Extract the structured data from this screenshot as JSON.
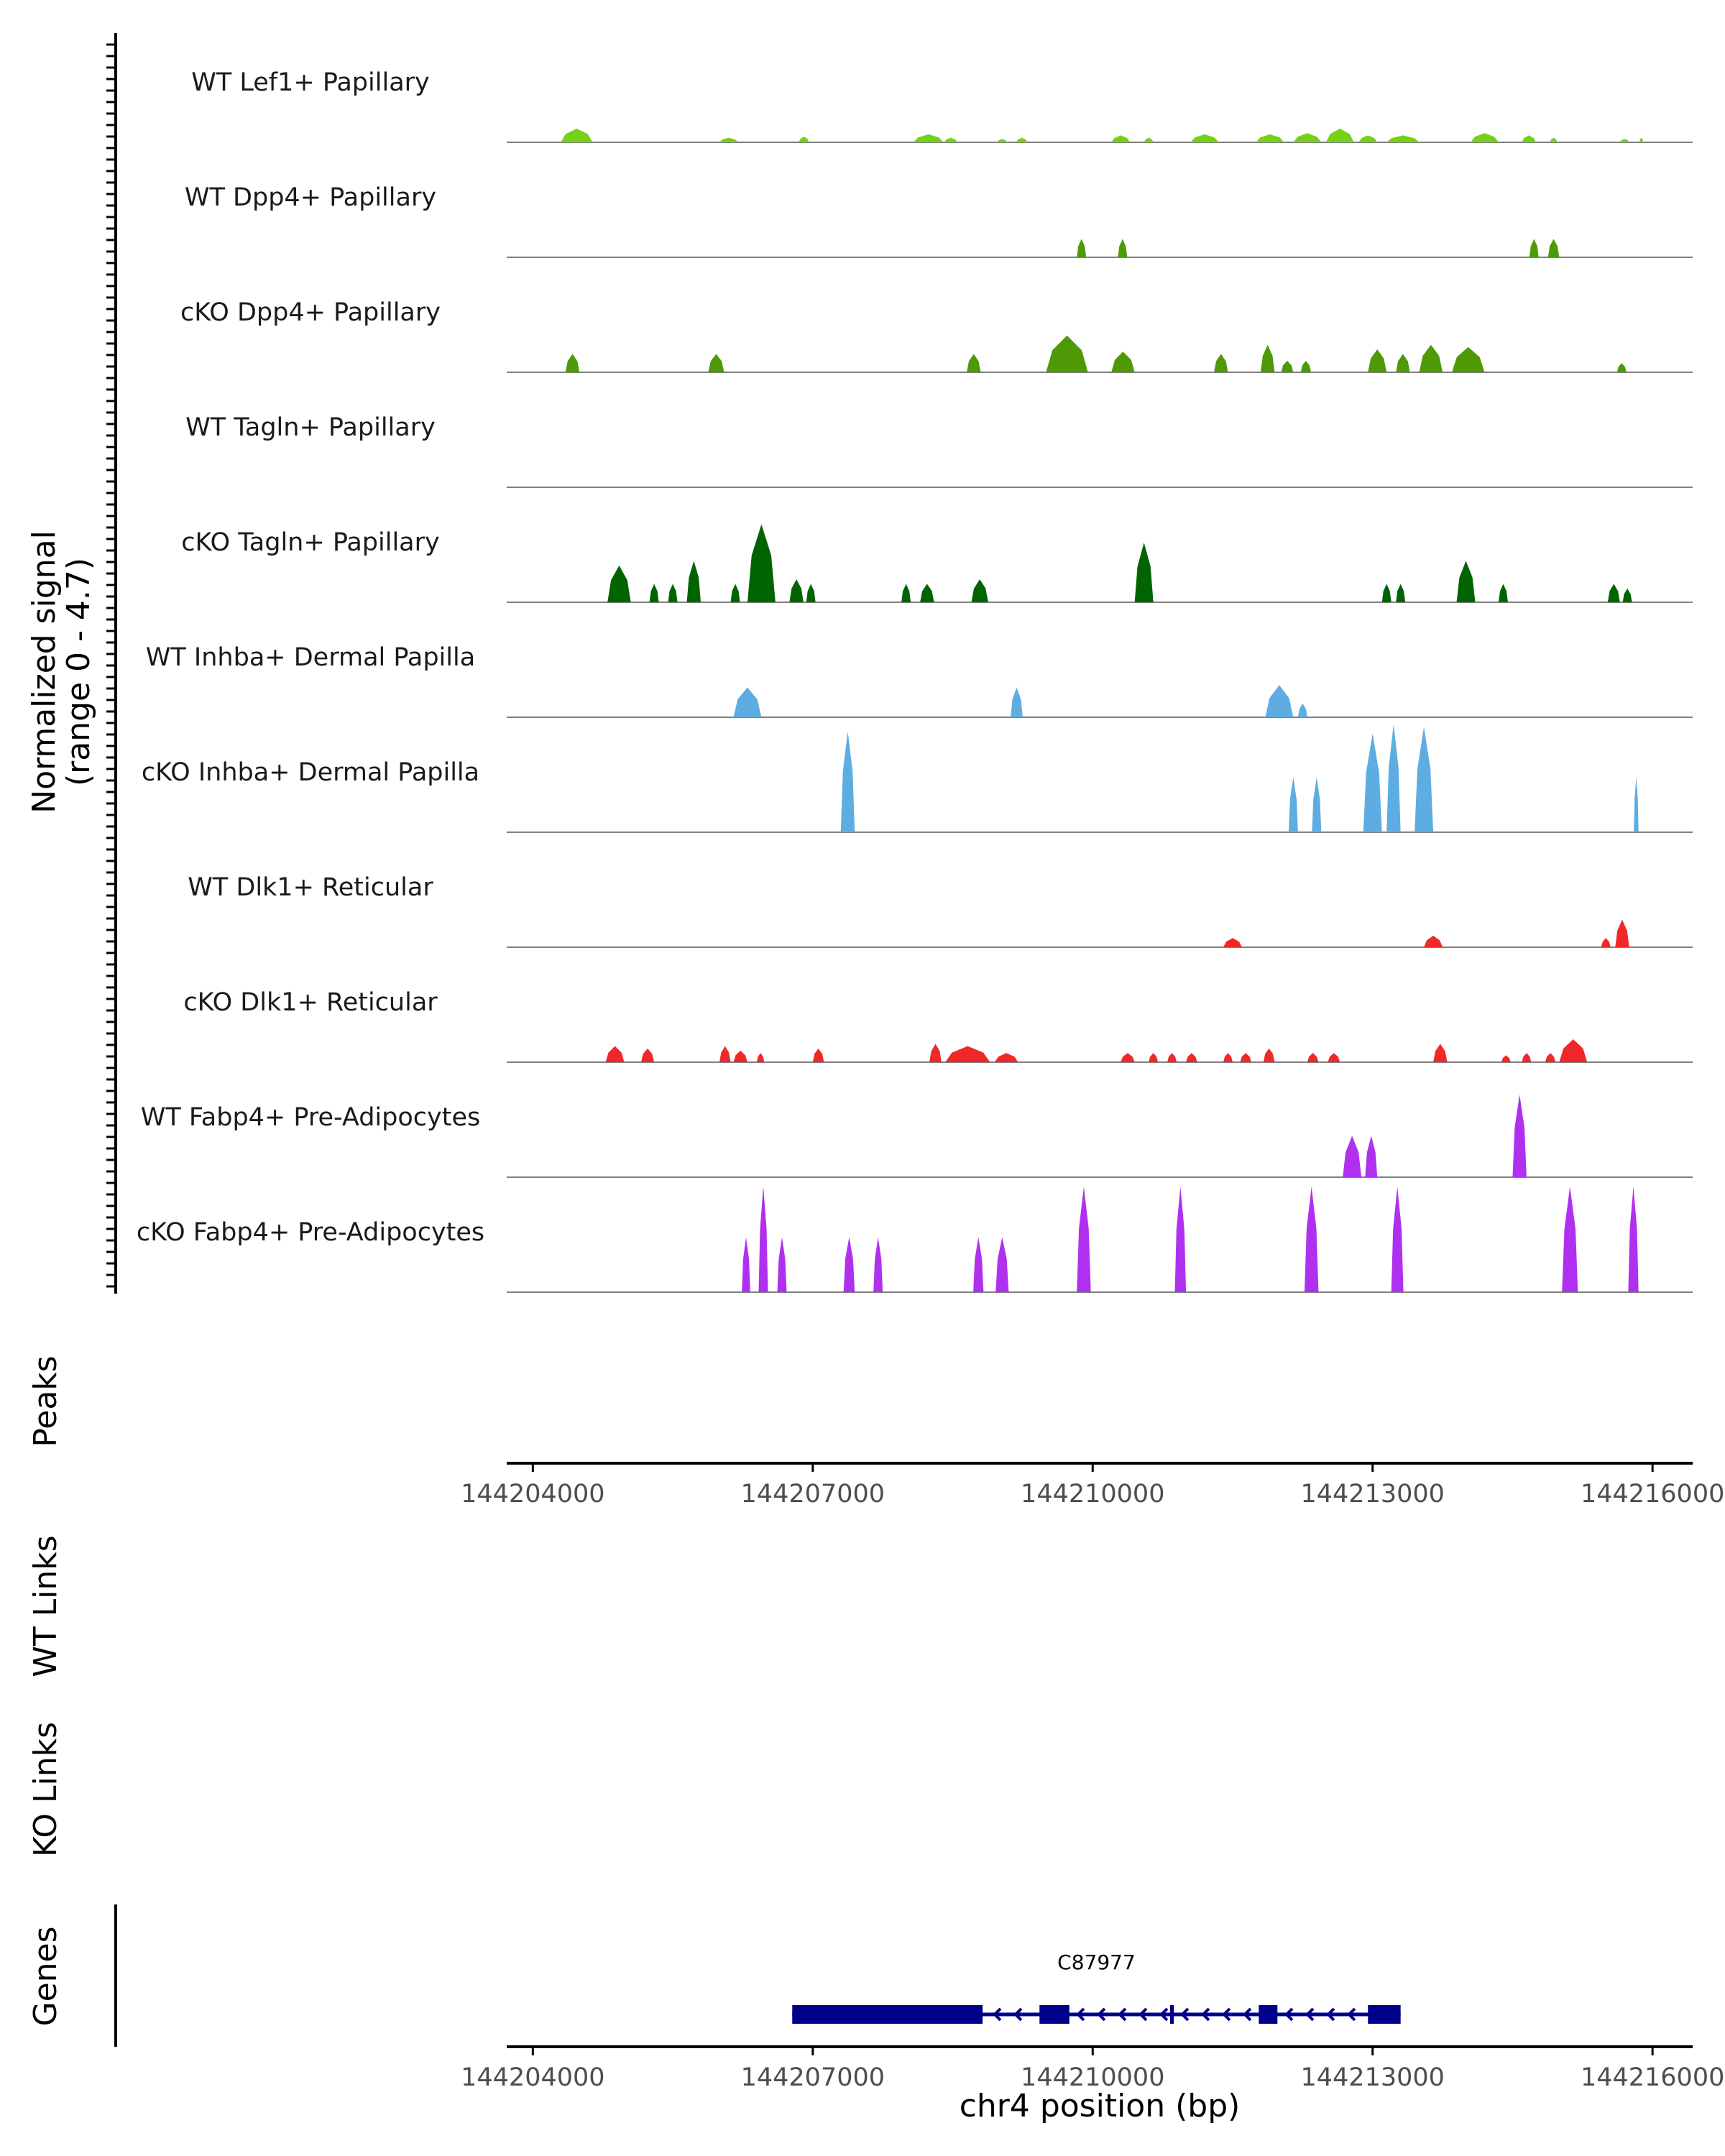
{
  "chart_data": {
    "type": "genome-coverage-track",
    "y_axis_label_line1": "Normalized signal",
    "y_axis_label_line2": "(range 0 - 4.7)",
    "y_range": [
      0,
      4.7
    ],
    "x_range": [
      144203720,
      144216430
    ],
    "x_ticks": [
      144204000,
      144207000,
      144210000,
      144213000,
      144216000
    ],
    "x_tick_labels": [
      "144204000",
      "144207000",
      "144210000",
      "144213000",
      "144216000"
    ],
    "xlabel": "chr4 position (bp)",
    "tracks": [
      {
        "name": "WT Lef1+ Papillary",
        "color": "#73d216",
        "peaks": [
          [
            144204300,
            144204640,
            0.6
          ],
          [
            144206000,
            144206200,
            0.2
          ],
          [
            144206850,
            144206960,
            0.25
          ],
          [
            144208080,
            144208400,
            0.35
          ],
          [
            144208410,
            144208550,
            0.2
          ],
          [
            144208980,
            144209080,
            0.15
          ],
          [
            144209180,
            144209300,
            0.2
          ],
          [
            144210200,
            144210400,
            0.3
          ],
          [
            144210550,
            144210650,
            0.2
          ],
          [
            144211050,
            144211350,
            0.35
          ],
          [
            144211750,
            144212050,
            0.35
          ],
          [
            144212150,
            144212450,
            0.4
          ],
          [
            144212500,
            144212800,
            0.6
          ],
          [
            144212850,
            144213050,
            0.3
          ],
          [
            144213150,
            144213500,
            0.3
          ],
          [
            144214050,
            144214350,
            0.4
          ],
          [
            144214600,
            144214750,
            0.3
          ],
          [
            144214900,
            144214980,
            0.2
          ],
          [
            144215650,
            144215750,
            0.15
          ],
          [
            144215860,
            144215900,
            0.2
          ]
        ]
      },
      {
        "name": "WT Dpp4+ Papillary",
        "color": "#4e9a06",
        "peaks": [
          [
            144209830,
            144209930,
            0.8
          ],
          [
            144210270,
            144210370,
            0.8
          ],
          [
            144214680,
            144214780,
            0.8
          ],
          [
            144214880,
            144215000,
            0.8
          ]
        ]
      },
      {
        "name": "cKO Dpp4+ Papillary",
        "color": "#4e9a06",
        "peaks": [
          [
            144204350,
            144204500,
            0.8
          ],
          [
            144205880,
            144206050,
            0.8
          ],
          [
            144208650,
            144208800,
            0.8
          ],
          [
            144209500,
            144209950,
            1.6
          ],
          [
            144210200,
            144210450,
            0.9
          ],
          [
            144211300,
            144211450,
            0.8
          ],
          [
            144211800,
            144211950,
            1.2
          ],
          [
            144212020,
            144212150,
            0.5
          ],
          [
            144212230,
            144212340,
            0.5
          ],
          [
            144212950,
            144213150,
            1.0
          ],
          [
            144213250,
            144213400,
            0.8
          ],
          [
            144213500,
            144213750,
            1.2
          ],
          [
            144213850,
            144214200,
            1.1
          ],
          [
            144215620,
            144215720,
            0.4
          ]
        ]
      },
      {
        "name": "WT Tagln+ Papillary",
        "color": "#006400",
        "peaks": []
      },
      {
        "name": "cKO Tagln+ Papillary",
        "color": "#006400",
        "peaks": [
          [
            144204800,
            144205050,
            1.6
          ],
          [
            144205250,
            144205350,
            0.8
          ],
          [
            144205450,
            144205550,
            0.8
          ],
          [
            144205650,
            144205800,
            1.8
          ],
          [
            144206120,
            144206220,
            0.8
          ],
          [
            144206300,
            144206600,
            3.4
          ],
          [
            144206750,
            144206900,
            1.0
          ],
          [
            144206930,
            144207030,
            0.8
          ],
          [
            144207950,
            144208050,
            0.8
          ],
          [
            144208150,
            144208300,
            0.8
          ],
          [
            144208700,
            144208880,
            1.0
          ],
          [
            144210450,
            144210650,
            2.6
          ],
          [
            144213100,
            144213200,
            0.8
          ],
          [
            144213250,
            144213350,
            0.8
          ],
          [
            144213900,
            144214100,
            1.8
          ],
          [
            144214350,
            144214450,
            0.8
          ],
          [
            144215520,
            144215650,
            0.8
          ],
          [
            144215680,
            144215780,
            0.6
          ]
        ]
      },
      {
        "name": "WT Inhba+ Dermal Papilla",
        "color": "#5dade2",
        "peaks": [
          [
            144206150,
            144206450,
            1.3
          ],
          [
            144209120,
            144209250,
            1.3
          ],
          [
            144211850,
            144212150,
            1.4
          ],
          [
            144212200,
            144212300,
            0.6
          ]
        ]
      },
      {
        "name": "cKO Inhba+ Dermal Papilla",
        "color": "#5dade2",
        "peaks": [
          [
            144207300,
            144207450,
            4.4
          ],
          [
            144212100,
            144212200,
            2.4
          ],
          [
            144212350,
            144212450,
            2.4
          ],
          [
            144212900,
            144213100,
            4.3
          ],
          [
            144213150,
            144213300,
            4.7
          ],
          [
            144213450,
            144213650,
            4.6
          ],
          [
            144215800,
            144215850,
            2.4
          ]
        ]
      },
      {
        "name": "WT Dlk1+ Reticular",
        "color": "#ef2929",
        "peaks": [
          [
            144211400,
            144211600,
            0.4
          ],
          [
            144213550,
            144213750,
            0.5
          ],
          [
            144215450,
            144215550,
            0.4
          ],
          [
            144215600,
            144215750,
            1.2
          ]
        ]
      },
      {
        "name": "cKO Dlk1+ Reticular",
        "color": "#ef2929",
        "peaks": [
          [
            144204780,
            144204980,
            0.7
          ],
          [
            144205160,
            144205300,
            0.6
          ],
          [
            144206000,
            144206120,
            0.7
          ],
          [
            144206150,
            144206300,
            0.5
          ],
          [
            144206400,
            144206480,
            0.4
          ],
          [
            144207000,
            144207120,
            0.6
          ],
          [
            144208250,
            144208380,
            0.8
          ],
          [
            144208420,
            144208900,
            0.7
          ],
          [
            144208950,
            144209200,
            0.4
          ],
          [
            144210300,
            144210450,
            0.4
          ],
          [
            144210600,
            144210700,
            0.4
          ],
          [
            144210800,
            144210900,
            0.4
          ],
          [
            144211000,
            144211120,
            0.4
          ],
          [
            144211400,
            144211500,
            0.4
          ],
          [
            144211580,
            144211700,
            0.4
          ],
          [
            144211830,
            144211950,
            0.6
          ],
          [
            144212300,
            144212420,
            0.4
          ],
          [
            144212520,
            144212650,
            0.4
          ],
          [
            144213650,
            144213800,
            0.8
          ],
          [
            144214380,
            144214480,
            0.3
          ],
          [
            144214600,
            144214700,
            0.4
          ],
          [
            144214850,
            144214960,
            0.4
          ],
          [
            144215000,
            144215300,
            1.0
          ]
        ]
      },
      {
        "name": "WT Fabp4+ Pre-Adipocytes",
        "color": "#b030f0",
        "peaks": [
          [
            144212680,
            144212880,
            1.8
          ],
          [
            144212920,
            144213050,
            1.8
          ],
          [
            144214500,
            144214650,
            3.6
          ]
        ]
      },
      {
        "name": "cKO Fabp4+ Pre-Adipocytes",
        "color": "#b030f0",
        "peaks": [
          [
            144206240,
            144206330,
            2.4
          ],
          [
            144206420,
            144206520,
            4.6
          ],
          [
            144206620,
            144206720,
            2.4
          ],
          [
            144207330,
            144207450,
            2.4
          ],
          [
            144207650,
            144207750,
            2.4
          ],
          [
            144208720,
            144208830,
            2.4
          ],
          [
            144208960,
            144209100,
            2.4
          ],
          [
            144209830,
            144209980,
            4.6
          ],
          [
            144210880,
            144211000,
            4.6
          ],
          [
            144212270,
            144212420,
            4.6
          ],
          [
            144213200,
            144213330,
            4.6
          ],
          [
            144215030,
            144215200,
            4.6
          ],
          [
            144215740,
            144215850,
            4.6
          ]
        ]
      }
    ],
    "extra_tracks": [
      "Peaks",
      "WT Links",
      "KO Links"
    ],
    "genes_track_label": "Genes",
    "gene": {
      "name": "C87977",
      "start": 144206780,
      "end": 144213300,
      "strand": "-",
      "exons": [
        [
          144206780,
          144208820
        ],
        [
          144209430,
          144209750
        ],
        [
          144210830,
          144210870
        ],
        [
          144211780,
          144211980
        ],
        [
          144212950,
          144213300
        ]
      ]
    }
  }
}
